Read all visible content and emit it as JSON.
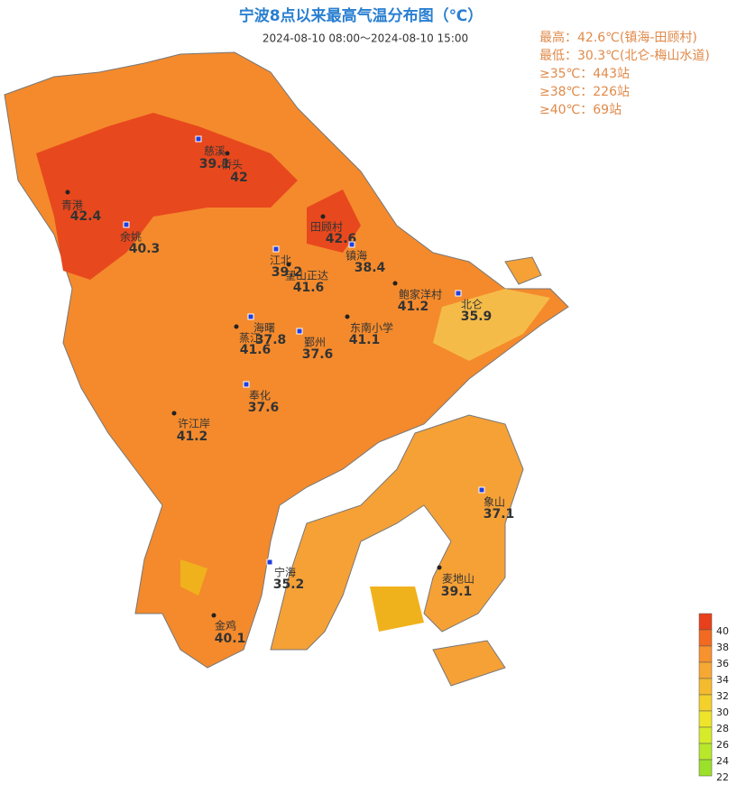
{
  "header": {
    "title": "宁波8点以来最高气温分布图（℃）",
    "time": "2024-08-10  08:00～2024-08-10 15:00"
  },
  "summary": [
    "最高：42.6℃(镇海-田顾村)",
    "最低：30.3℃(北仑-梅山水道)",
    "≥35℃：443站",
    "≥38℃：226站",
    "≥40℃：69站"
  ],
  "stations": [
    {
      "name": "慈溪",
      "value": 39.1
    },
    {
      "name": "桥头",
      "value": 42
    },
    {
      "name": "青港",
      "value": 42.4
    },
    {
      "name": "余姚",
      "value": 40.3
    },
    {
      "name": "田顾村",
      "value": 42.6
    },
    {
      "name": "江北",
      "value": 39.2
    },
    {
      "name": "镇海",
      "value": 38.4
    },
    {
      "name": "望山正达",
      "value": 41.6
    },
    {
      "name": "鲍家洋村",
      "value": 41.2
    },
    {
      "name": "北仑",
      "value": 35.9
    },
    {
      "name": "海曙",
      "value": 37.8
    },
    {
      "name": "蒸江",
      "value": 41.6
    },
    {
      "name": "鄞州",
      "value": 37.6
    },
    {
      "name": "东南小学",
      "value": 41.1
    },
    {
      "name": "奉化",
      "value": 37.6
    },
    {
      "name": "许江岸",
      "value": 41.2
    },
    {
      "name": "象山",
      "value": 37.1
    },
    {
      "name": "宁海",
      "value": 35.2
    },
    {
      "name": "麦地山",
      "value": 39.1
    },
    {
      "name": "金鸡",
      "value": 40.1
    }
  ],
  "legend": {
    "labels": [
      40,
      38,
      36,
      34,
      32,
      30,
      28,
      26,
      24,
      22
    ],
    "colors": [
      "#e8401c",
      "#f26a21",
      "#f7922e",
      "#f7a833",
      "#f5bb2e",
      "#f3d12a",
      "#eee42a",
      "#d6ec2a",
      "#b8e82a",
      "#9be02a"
    ]
  }
}
